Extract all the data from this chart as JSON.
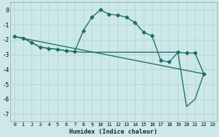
{
  "xlabel": "Humidex (Indice chaleur)",
  "bg_color": "#cce8e8",
  "line_color": "#1a6e6a",
  "grid_color": "#b0d0d0",
  "xlim": [
    -0.5,
    23.5
  ],
  "ylim": [
    -7.5,
    0.5
  ],
  "yticks": [
    0,
    -1,
    -2,
    -3,
    -4,
    -5,
    -6,
    -7
  ],
  "xticks": [
    0,
    1,
    2,
    3,
    4,
    5,
    6,
    7,
    8,
    9,
    10,
    11,
    12,
    13,
    14,
    15,
    16,
    17,
    18,
    19,
    20,
    21,
    22,
    23
  ],
  "line1": {
    "x": [
      0,
      1,
      2,
      3,
      4,
      5,
      6,
      7,
      8,
      9,
      10,
      11,
      12,
      13,
      14,
      15,
      16,
      17,
      18,
      19,
      20,
      21,
      22
    ],
    "y": [
      -1.8,
      -1.9,
      -2.2,
      -2.5,
      -2.6,
      -2.65,
      -2.75,
      -2.8,
      -1.4,
      -0.5,
      0.0,
      -0.3,
      -0.35,
      -0.5,
      -0.85,
      -1.5,
      -1.75,
      -3.4,
      -3.5,
      -2.85,
      -2.9,
      -2.9,
      -4.3
    ]
  },
  "line2": {
    "x": [
      0,
      1,
      2,
      3,
      4,
      5,
      6,
      7,
      8,
      9,
      10,
      11,
      12,
      13,
      14,
      15,
      16,
      17,
      18,
      19,
      20,
      21,
      22
    ],
    "y": [
      -1.8,
      -1.9,
      -2.2,
      -2.5,
      -2.6,
      -2.65,
      -2.75,
      -2.8,
      -2.85,
      -2.85,
      -2.85,
      -2.85,
      -2.85,
      -2.85,
      -2.85,
      -2.85,
      -2.85,
      -2.85,
      -2.85,
      -2.85,
      -6.5,
      -6.0,
      -4.3
    ]
  },
  "line3": {
    "x": [
      0,
      22
    ],
    "y": [
      -1.8,
      -4.3
    ]
  },
  "markersize": 2.5,
  "linewidth": 1.0
}
